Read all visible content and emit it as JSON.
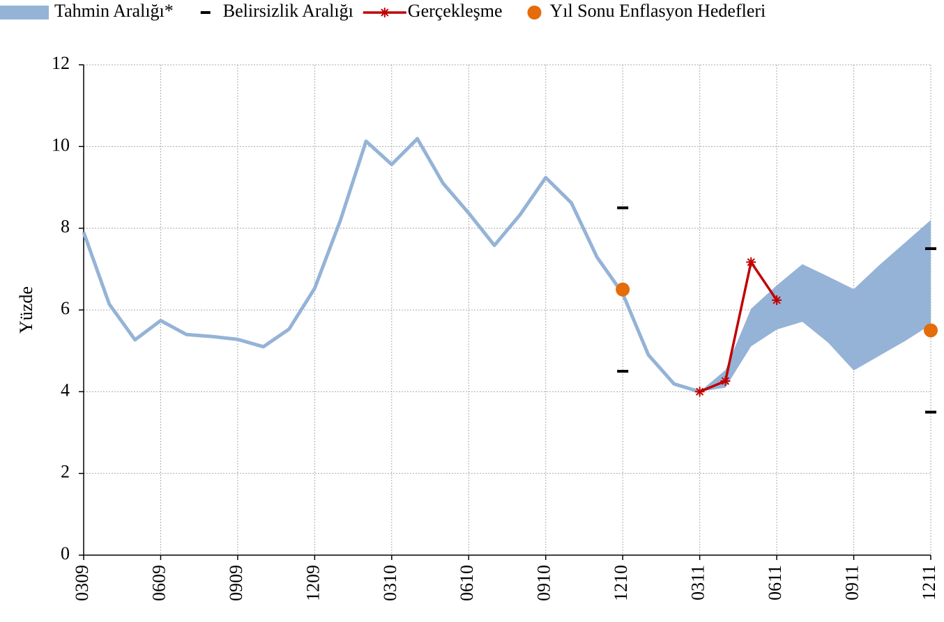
{
  "chart_data": {
    "type": "line",
    "y_label": "Yüzde",
    "categories": [
      "0309",
      null,
      null,
      "0609",
      null,
      null,
      "0909",
      null,
      null,
      "1209",
      null,
      null,
      "0310",
      null,
      null,
      "0610",
      null,
      null,
      "0910",
      null,
      null,
      "1210",
      null,
      null,
      "0311",
      null,
      null,
      "0611",
      null,
      null,
      "0911",
      null,
      null,
      "1211"
    ],
    "ylim": [
      0,
      12
    ],
    "yticks": [
      0,
      2,
      4,
      6,
      8,
      10,
      12
    ],
    "grid": true,
    "series": [
      {
        "kind": "line",
        "color": "#95b3d7",
        "values": [
          7.9,
          6.14,
          5.27,
          5.74,
          5.4,
          5.35,
          5.28,
          5.1,
          5.53,
          6.53,
          8.19,
          10.13,
          9.56,
          10.19,
          9.1,
          8.37,
          7.58,
          8.33,
          9.24,
          8.62,
          7.29,
          6.4,
          4.9,
          4.19,
          4.0,
          null,
          null,
          null,
          null,
          null,
          null,
          null,
          null,
          null
        ]
      },
      {
        "name": "Tahmin Aralığı*",
        "kind": "band",
        "color": "#95b3d7",
        "lower": [
          null,
          null,
          null,
          null,
          null,
          null,
          null,
          null,
          null,
          null,
          null,
          null,
          null,
          null,
          null,
          null,
          null,
          null,
          null,
          null,
          null,
          null,
          null,
          null,
          4.0,
          4.1,
          5.11,
          5.52,
          5.71,
          5.2,
          4.52,
          4.88,
          5.24,
          5.64
        ],
        "upper": [
          null,
          null,
          null,
          null,
          null,
          null,
          null,
          null,
          null,
          null,
          null,
          null,
          null,
          null,
          null,
          null,
          null,
          null,
          null,
          null,
          null,
          null,
          null,
          null,
          4.0,
          4.53,
          6.03,
          6.6,
          7.12,
          6.82,
          6.51,
          7.1,
          7.65,
          8.2
        ]
      },
      {
        "name": "Belirsizlik Aralığı",
        "kind": "dash",
        "color": "#000000",
        "lower": [
          null,
          null,
          null,
          null,
          null,
          null,
          null,
          null,
          null,
          null,
          null,
          null,
          null,
          null,
          null,
          null,
          null,
          null,
          null,
          null,
          null,
          4.5,
          null,
          null,
          null,
          null,
          null,
          null,
          null,
          null,
          null,
          null,
          null,
          3.5
        ],
        "upper": [
          null,
          null,
          null,
          null,
          null,
          null,
          null,
          null,
          null,
          null,
          null,
          null,
          null,
          null,
          null,
          null,
          null,
          null,
          null,
          null,
          null,
          8.5,
          null,
          null,
          null,
          null,
          null,
          null,
          null,
          null,
          null,
          null,
          null,
          7.5
        ]
      },
      {
        "name": "Gerçekleşme",
        "kind": "star-line",
        "color": "#c00000",
        "values": [
          null,
          null,
          null,
          null,
          null,
          null,
          null,
          null,
          null,
          null,
          null,
          null,
          null,
          null,
          null,
          null,
          null,
          null,
          null,
          null,
          null,
          null,
          null,
          null,
          4.0,
          4.26,
          7.17,
          6.24,
          null,
          null,
          null,
          null,
          null,
          null
        ]
      },
      {
        "name": "Yıl Sonu Enflasyon Hedefleri",
        "kind": "dot",
        "color": "#e46c0a",
        "values": [
          null,
          null,
          null,
          null,
          null,
          null,
          null,
          null,
          null,
          null,
          null,
          null,
          null,
          null,
          null,
          null,
          null,
          null,
          null,
          null,
          null,
          6.5,
          null,
          null,
          null,
          null,
          null,
          null,
          null,
          null,
          null,
          null,
          null,
          5.5
        ]
      }
    ]
  }
}
